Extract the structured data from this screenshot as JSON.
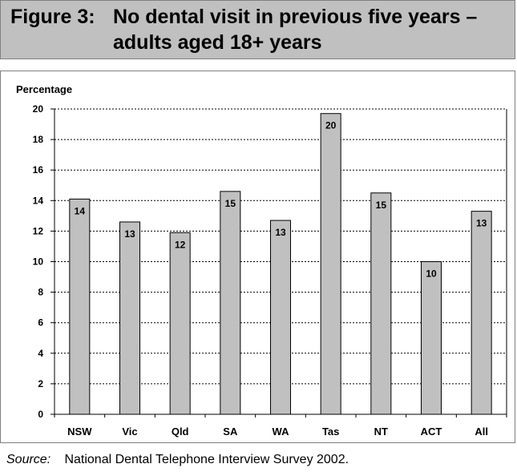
{
  "figure": {
    "label": "Figure 3:",
    "title_line1": "No dental visit in previous five years –",
    "title_line2": "adults aged 18+ years"
  },
  "source": {
    "label": "Source:",
    "text": "National Dental Telephone Interview Survey 2002."
  },
  "colors": {
    "bar_fill": "#c0c0c0",
    "header_fill": "#c0c0c0",
    "grid": "#000000"
  },
  "chart_data": {
    "type": "bar",
    "ylabel": "Percentage",
    "xlabel": "",
    "ylim": [
      0,
      20
    ],
    "yticks": [
      0,
      2,
      4,
      6,
      8,
      10,
      12,
      14,
      16,
      18,
      20
    ],
    "grid": "horizontal-dotted",
    "legend": "none",
    "categories": [
      "NSW",
      "Vic",
      "Qld",
      "SA",
      "WA",
      "Tas",
      "NT",
      "ACT",
      "All"
    ],
    "values": [
      14.1,
      12.6,
      11.9,
      14.6,
      12.7,
      19.7,
      14.5,
      10.0,
      13.3
    ],
    "data_labels": [
      "14",
      "13",
      "12",
      "15",
      "13",
      "20",
      "15",
      "10",
      "13"
    ]
  }
}
